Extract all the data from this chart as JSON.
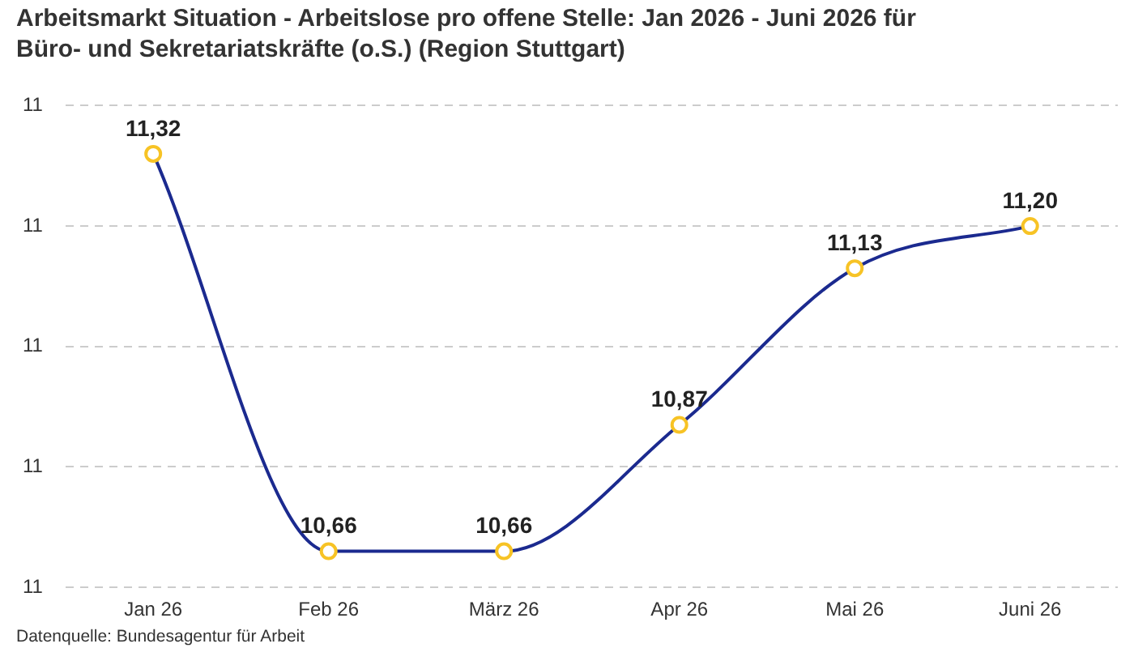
{
  "chart_data": {
    "type": "line",
    "title": "Arbeitsmarkt Situation - Arbeitslose pro offene Stelle: Jan 2026 - Juni 2026 für Büro- und Sekretariatskräfte (o.S.) (Region Stuttgart)",
    "categories": [
      "Jan 26",
      "Feb 26",
      "März 26",
      "Apr 26",
      "Mai 26",
      "Juni 26"
    ],
    "series": [
      {
        "color": "#1b2a8f",
        "colors": [
          "#f7c325",
          "#f7c325",
          "#f7c325",
          "#f7c325",
          "#f7c325",
          "#f7c325"
        ],
        "values": [
          11.32,
          10.66,
          10.66,
          10.87,
          11.13,
          11.2
        ],
        "value_labels": [
          "11,32",
          "10,66",
          "10,66",
          "10,87",
          "11,13",
          "11,20"
        ]
      }
    ],
    "ylim": [
      10.6,
      11.4
    ],
    "yticks": [
      {
        "value": 10.6,
        "label": "11"
      },
      {
        "value": 10.8,
        "label": "11"
      },
      {
        "value": 11.0,
        "label": "11"
      },
      {
        "value": 11.2,
        "label": "11"
      },
      {
        "value": 11.4,
        "label": "11"
      }
    ],
    "grid": "y",
    "marker": "circle",
    "annotations": [
      "Datenquelle: Bundesagentur für Arbeit"
    ]
  }
}
